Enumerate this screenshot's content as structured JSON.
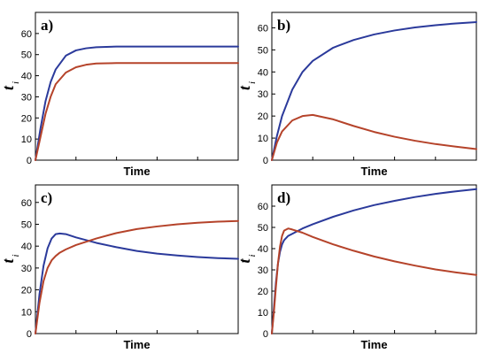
{
  "chart_data": [
    {
      "type": "line",
      "title": "a)",
      "xlabel": "Time",
      "ylabel": "t",
      "ylabel_sub": "i",
      "ylim": [
        0,
        70
      ],
      "xlim": [
        0,
        10
      ],
      "yticks": [
        0,
        10,
        20,
        30,
        40,
        50,
        60
      ],
      "x_minor_ticks": [
        2,
        4,
        6,
        8
      ],
      "series": [
        {
          "color": "#2b3a9b",
          "x": [
            0,
            0.25,
            0.5,
            0.75,
            1,
            1.5,
            2,
            2.5,
            3,
            4,
            5,
            6,
            8,
            10
          ],
          "values": [
            0,
            15,
            28,
            37,
            43,
            49.5,
            52,
            53,
            53.5,
            53.8,
            53.8,
            53.8,
            53.8,
            53.8
          ]
        },
        {
          "color": "#b5432a",
          "x": [
            0,
            0.25,
            0.5,
            0.75,
            1,
            1.5,
            2,
            2.5,
            3,
            4,
            5,
            6,
            8,
            10
          ],
          "values": [
            0,
            11,
            22,
            30,
            36,
            41.5,
            44,
            45.2,
            45.8,
            46,
            46,
            46,
            46,
            46
          ]
        }
      ]
    },
    {
      "type": "line",
      "title": "b)",
      "xlabel": "Time",
      "ylabel": "t",
      "ylabel_sub": "i",
      "ylim": [
        0,
        67
      ],
      "xlim": [
        0,
        10
      ],
      "yticks": [
        0,
        10,
        20,
        30,
        40,
        50,
        60
      ],
      "x_minor_ticks": [
        2,
        4,
        6,
        8
      ],
      "series": [
        {
          "color": "#2b3a9b",
          "x": [
            0,
            0.25,
            0.5,
            1,
            1.5,
            2,
            3,
            4,
            5,
            6,
            7,
            8,
            9,
            10
          ],
          "values": [
            0,
            11,
            20,
            32,
            40,
            45,
            51,
            54.5,
            57,
            58.8,
            60.2,
            61.2,
            62,
            62.6
          ]
        },
        {
          "color": "#b5432a",
          "x": [
            0,
            0.25,
            0.5,
            1,
            1.5,
            2,
            3,
            4,
            5,
            6,
            7,
            8,
            9,
            10
          ],
          "values": [
            0,
            8,
            13,
            18,
            20,
            20.5,
            18.5,
            15.5,
            12.8,
            10.6,
            8.8,
            7.3,
            6.1,
            5
          ]
        }
      ]
    },
    {
      "type": "line",
      "title": "c)",
      "xlabel": "Time",
      "ylabel": "t",
      "ylabel_sub": "i",
      "ylim": [
        0,
        68
      ],
      "xlim": [
        0,
        10
      ],
      "yticks": [
        0,
        10,
        20,
        30,
        40,
        50,
        60
      ],
      "x_minor_ticks": [
        2,
        4,
        6,
        8
      ],
      "series": [
        {
          "color": "#2b3a9b",
          "x": [
            0,
            0.2,
            0.4,
            0.6,
            0.8,
            1,
            1.2,
            1.5,
            2,
            3,
            4,
            5,
            6,
            7,
            8,
            9,
            10
          ],
          "values": [
            0,
            18,
            31,
            39,
            43.5,
            45.5,
            45.8,
            45.5,
            44,
            41.5,
            39.5,
            37.8,
            36.6,
            35.7,
            35,
            34.5,
            34.2
          ]
        },
        {
          "color": "#b5432a",
          "x": [
            0,
            0.2,
            0.4,
            0.6,
            0.8,
            1,
            1.2,
            1.5,
            2,
            3,
            4,
            5,
            6,
            7,
            8,
            9,
            10
          ],
          "values": [
            0,
            14,
            24,
            30,
            33.5,
            35.5,
            37,
            38.5,
            40.5,
            43.5,
            46,
            47.8,
            49,
            50,
            50.7,
            51.2,
            51.5
          ]
        }
      ]
    },
    {
      "type": "line",
      "title": "d)",
      "xlabel": "Time",
      "ylabel": "t",
      "ylabel_sub": "i",
      "ylim": [
        0,
        70
      ],
      "xlim": [
        0,
        10
      ],
      "yticks": [
        0,
        10,
        20,
        30,
        40,
        50,
        60
      ],
      "x_minor_ticks": [
        2,
        4,
        6,
        8
      ],
      "series": [
        {
          "color": "#2b3a9b",
          "x": [
            0,
            0.1,
            0.2,
            0.3,
            0.4,
            0.5,
            0.6,
            0.8,
            1,
            1.5,
            2,
            3,
            4,
            5,
            6,
            7,
            8,
            9,
            10
          ],
          "values": [
            0,
            12,
            24,
            33,
            38.5,
            42,
            44,
            46,
            47,
            49.5,
            51.5,
            55,
            58,
            60.5,
            62.5,
            64.3,
            65.8,
            67,
            68
          ]
        },
        {
          "color": "#b5432a",
          "x": [
            0,
            0.1,
            0.2,
            0.3,
            0.4,
            0.5,
            0.6,
            0.8,
            1,
            1.5,
            2,
            3,
            4,
            5,
            6,
            7,
            8,
            9,
            10
          ],
          "values": [
            0,
            10,
            22,
            33,
            41,
            46,
            48.5,
            49.5,
            49,
            47.5,
            45.5,
            42,
            39,
            36.3,
            34,
            32,
            30.2,
            28.8,
            27.6
          ]
        }
      ]
    }
  ]
}
